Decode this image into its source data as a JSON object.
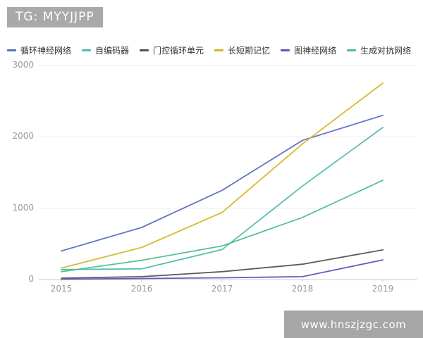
{
  "header": {
    "badge": "TG: MYYJJPP"
  },
  "watermark": {
    "text": "www.hnszjzgc.com"
  },
  "colors": {
    "badge_bg": "#a9a9a9",
    "watermark_bg": "#a6a6a6",
    "grid": "#ececec",
    "axis": "#cccccc",
    "axis_text": "#999999",
    "legend_text": "#333333"
  },
  "chart_data": {
    "type": "line",
    "title": "",
    "xlabel": "",
    "ylabel": "",
    "x": [
      "2015",
      "2016",
      "2017",
      "2018",
      "2019"
    ],
    "yticks": [
      0,
      1000,
      2000,
      3000
    ],
    "ylim": [
      0,
      3000
    ],
    "grid": true,
    "legend_position": "top",
    "series": [
      {
        "name": "循环神经网络",
        "color": "#5a6fc0",
        "values": [
          400,
          730,
          1250,
          1950,
          2300
        ]
      },
      {
        "name": "自编码器",
        "color": "#4fbcb0",
        "values": [
          140,
          150,
          420,
          1310,
          2130
        ]
      },
      {
        "name": "门控循环单元",
        "color": "#4f5358",
        "values": [
          20,
          40,
          110,
          215,
          415
        ]
      },
      {
        "name": "长短期记忆",
        "color": "#d6b525",
        "values": [
          160,
          450,
          940,
          1900,
          2750
        ]
      },
      {
        "name": "图神经网络",
        "color": "#5f55b6",
        "values": [
          5,
          15,
          25,
          40,
          275
        ]
      },
      {
        "name": "生成对抗网络",
        "color": "#4ebe8f",
        "values": [
          110,
          270,
          470,
          870,
          1390
        ]
      }
    ]
  }
}
